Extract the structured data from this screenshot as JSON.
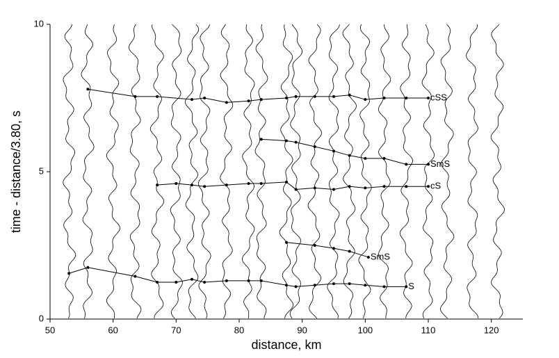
{
  "chart_data": {
    "type": "line",
    "xlabel": "distance, km",
    "ylabel": "time - distance/3.80, s",
    "xlim": [
      50,
      125
    ],
    "ylim": [
      0,
      10
    ],
    "xticks": [
      50,
      60,
      70,
      80,
      90,
      100,
      110,
      120
    ],
    "yticks": [
      0,
      5,
      10
    ],
    "color": "#000000",
    "traces": [
      53,
      56,
      60,
      63.5,
      67,
      70,
      72.5,
      74.5,
      78,
      81.5,
      83.5,
      87.5,
      89,
      92,
      95,
      97.5,
      100,
      103,
      106.5,
      110,
      113,
      117,
      121
    ],
    "series": [
      {
        "name": "S",
        "x": [
          53,
          56,
          63.5,
          67,
          70,
          72.5,
          74.5,
          78,
          81.5,
          83.5,
          87.5,
          89,
          92,
          95,
          97.5,
          100,
          103,
          106.5
        ],
        "values": [
          1.55,
          1.75,
          1.45,
          1.25,
          1.25,
          1.35,
          1.25,
          1.3,
          1.3,
          1.3,
          1.15,
          1.1,
          1.15,
          1.2,
          1.2,
          1.15,
          1.1,
          1.1
        ]
      },
      {
        "name": "SmS",
        "x": [
          87.5,
          92,
          95,
          97.5,
          100.5
        ],
        "values": [
          2.6,
          2.5,
          2.4,
          2.3,
          2.1
        ]
      },
      {
        "name": "cS",
        "x": [
          67,
          70,
          72.5,
          74.5,
          78,
          81.5,
          83.5,
          87.5,
          89,
          92,
          95,
          97.5,
          100,
          103,
          106.5,
          110
        ],
        "values": [
          4.55,
          4.6,
          4.55,
          4.5,
          4.55,
          4.6,
          4.6,
          4.65,
          4.4,
          4.45,
          4.4,
          4.5,
          4.45,
          4.5,
          4.5,
          4.5
        ]
      },
      {
        "name": "SmS",
        "x": [
          83.5,
          87.5,
          89,
          92,
          95,
          97.5,
          100,
          103,
          106.5,
          110
        ],
        "values": [
          6.1,
          6.05,
          6.0,
          5.85,
          5.7,
          5.55,
          5.45,
          5.45,
          5.25,
          5.25
        ]
      },
      {
        "name": "cSS",
        "x": [
          56,
          63.5,
          67,
          72.5,
          74.5,
          78,
          81.5,
          83.5,
          87.5,
          89,
          92,
          95,
          97.5,
          100,
          103,
          106.5,
          110
        ],
        "values": [
          7.8,
          7.55,
          7.55,
          7.45,
          7.5,
          7.35,
          7.4,
          7.45,
          7.5,
          7.55,
          7.55,
          7.55,
          7.6,
          7.45,
          7.5,
          7.5,
          7.5
        ]
      }
    ]
  }
}
